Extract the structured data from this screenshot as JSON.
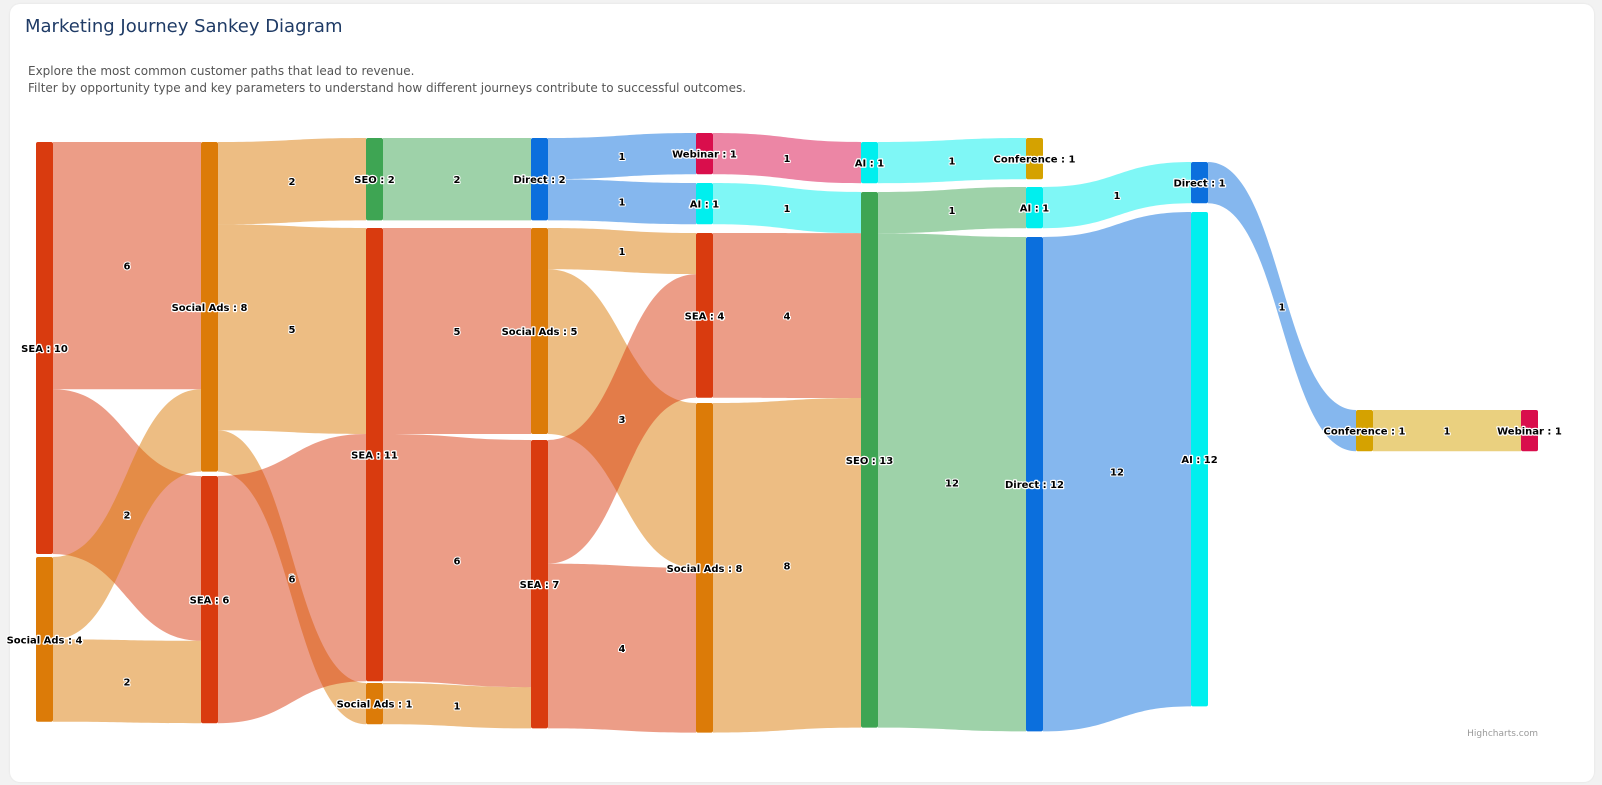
{
  "header": {
    "title": "Marketing Journey Sankey Diagram",
    "description_line1": "Explore the most common customer paths that lead to revenue.",
    "description_line2": "Filter by opportunity type and key parameters to understand how different journeys contribute to successful outcomes."
  },
  "credits": "Highcharts.com",
  "colors": {
    "SEA": "#d93b0f",
    "Social Ads": "#dc7b08",
    "SEO": "#3ea553",
    "Direct": "#0b6fdd",
    "Webinar": "#d90e4c",
    "AI": "#00efee",
    "Conference": "#d5a200"
  },
  "chart_data": {
    "type": "sankey",
    "title": "Marketing Journey Sankey Diagram",
    "nodes": [
      {
        "id": "c0_SEA",
        "name": "SEA",
        "column": 0,
        "value": 10
      },
      {
        "id": "c0_SocialAds",
        "name": "Social Ads",
        "column": 0,
        "value": 4
      },
      {
        "id": "c1_SocialAds",
        "name": "Social Ads",
        "column": 1,
        "value": 8
      },
      {
        "id": "c1_SEA",
        "name": "SEA",
        "column": 1,
        "value": 6
      },
      {
        "id": "c2_SEO",
        "name": "SEO",
        "column": 2,
        "value": 2
      },
      {
        "id": "c2_SEA",
        "name": "SEA",
        "column": 2,
        "value": 11
      },
      {
        "id": "c2_SocialAds",
        "name": "Social Ads",
        "column": 2,
        "value": 1
      },
      {
        "id": "c3_Direct",
        "name": "Direct",
        "column": 3,
        "value": 2
      },
      {
        "id": "c3_SocialAds",
        "name": "Social Ads",
        "column": 3,
        "value": 5
      },
      {
        "id": "c3_SEA",
        "name": "SEA",
        "column": 3,
        "value": 7
      },
      {
        "id": "c4_Webinar",
        "name": "Webinar",
        "column": 4,
        "value": 1
      },
      {
        "id": "c4_AI",
        "name": "AI",
        "column": 4,
        "value": 1
      },
      {
        "id": "c4_SEA",
        "name": "SEA",
        "column": 4,
        "value": 4
      },
      {
        "id": "c4_SocialAds",
        "name": "Social Ads",
        "column": 4,
        "value": 8
      },
      {
        "id": "c5_AI",
        "name": "AI",
        "column": 5,
        "value": 1
      },
      {
        "id": "c5_SEO",
        "name": "SEO",
        "column": 5,
        "value": 13
      },
      {
        "id": "c6_Conference",
        "name": "Conference",
        "column": 6,
        "value": 1
      },
      {
        "id": "c6_AI",
        "name": "AI",
        "column": 6,
        "value": 1
      },
      {
        "id": "c6_Direct",
        "name": "Direct",
        "column": 6,
        "value": 12
      },
      {
        "id": "c7_Direct",
        "name": "Direct",
        "column": 7,
        "value": 1
      },
      {
        "id": "c7_AI",
        "name": "AI",
        "column": 7,
        "value": 12
      },
      {
        "id": "c8_Conference",
        "name": "Conference",
        "column": 8,
        "value": 1
      },
      {
        "id": "c9_Webinar",
        "name": "Webinar",
        "column": 9,
        "value": 1
      }
    ],
    "links": [
      {
        "from": "c0_SEA",
        "to": "c1_SocialAds",
        "weight": 6
      },
      {
        "from": "c0_SEA",
        "to": "c1_SEA",
        "weight": 4
      },
      {
        "from": "c0_SocialAds",
        "to": "c1_SocialAds",
        "weight": 2
      },
      {
        "from": "c0_SocialAds",
        "to": "c1_SEA",
        "weight": 2
      },
      {
        "from": "c1_SocialAds",
        "to": "c2_SEO",
        "weight": 2
      },
      {
        "from": "c1_SocialAds",
        "to": "c2_SEA",
        "weight": 5
      },
      {
        "from": "c1_SocialAds",
        "to": "c2_SocialAds",
        "weight": 1
      },
      {
        "from": "c1_SEA",
        "to": "c2_SEA",
        "weight": 6
      },
      {
        "from": "c2_SEO",
        "to": "c3_Direct",
        "weight": 2
      },
      {
        "from": "c2_SEA",
        "to": "c3_SocialAds",
        "weight": 5
      },
      {
        "from": "c2_SEA",
        "to": "c3_SEA",
        "weight": 6
      },
      {
        "from": "c2_SocialAds",
        "to": "c3_SEA",
        "weight": 1
      },
      {
        "from": "c3_Direct",
        "to": "c4_Webinar",
        "weight": 1
      },
      {
        "from": "c3_Direct",
        "to": "c4_AI",
        "weight": 1
      },
      {
        "from": "c3_SocialAds",
        "to": "c4_SEA",
        "weight": 1
      },
      {
        "from": "c3_SocialAds",
        "to": "c4_SocialAds",
        "weight": 4
      },
      {
        "from": "c3_SEA",
        "to": "c4_SEA",
        "weight": 3
      },
      {
        "from": "c3_SEA",
        "to": "c4_SocialAds",
        "weight": 4
      },
      {
        "from": "c4_Webinar",
        "to": "c5_AI",
        "weight": 1
      },
      {
        "from": "c4_AI",
        "to": "c5_SEO",
        "weight": 1
      },
      {
        "from": "c4_SEA",
        "to": "c5_SEO",
        "weight": 4
      },
      {
        "from": "c4_SocialAds",
        "to": "c5_SEO",
        "weight": 8
      },
      {
        "from": "c5_AI",
        "to": "c6_Conference",
        "weight": 1
      },
      {
        "from": "c5_SEO",
        "to": "c6_AI",
        "weight": 1
      },
      {
        "from": "c5_SEO",
        "to": "c6_Direct",
        "weight": 12
      },
      {
        "from": "c6_AI",
        "to": "c7_Direct",
        "weight": 1
      },
      {
        "from": "c6_Direct",
        "to": "c7_AI",
        "weight": 12
      },
      {
        "from": "c7_Direct",
        "to": "c8_Conference",
        "weight": 1
      },
      {
        "from": "c8_Conference",
        "to": "c9_Webinar",
        "weight": 1
      }
    ]
  }
}
